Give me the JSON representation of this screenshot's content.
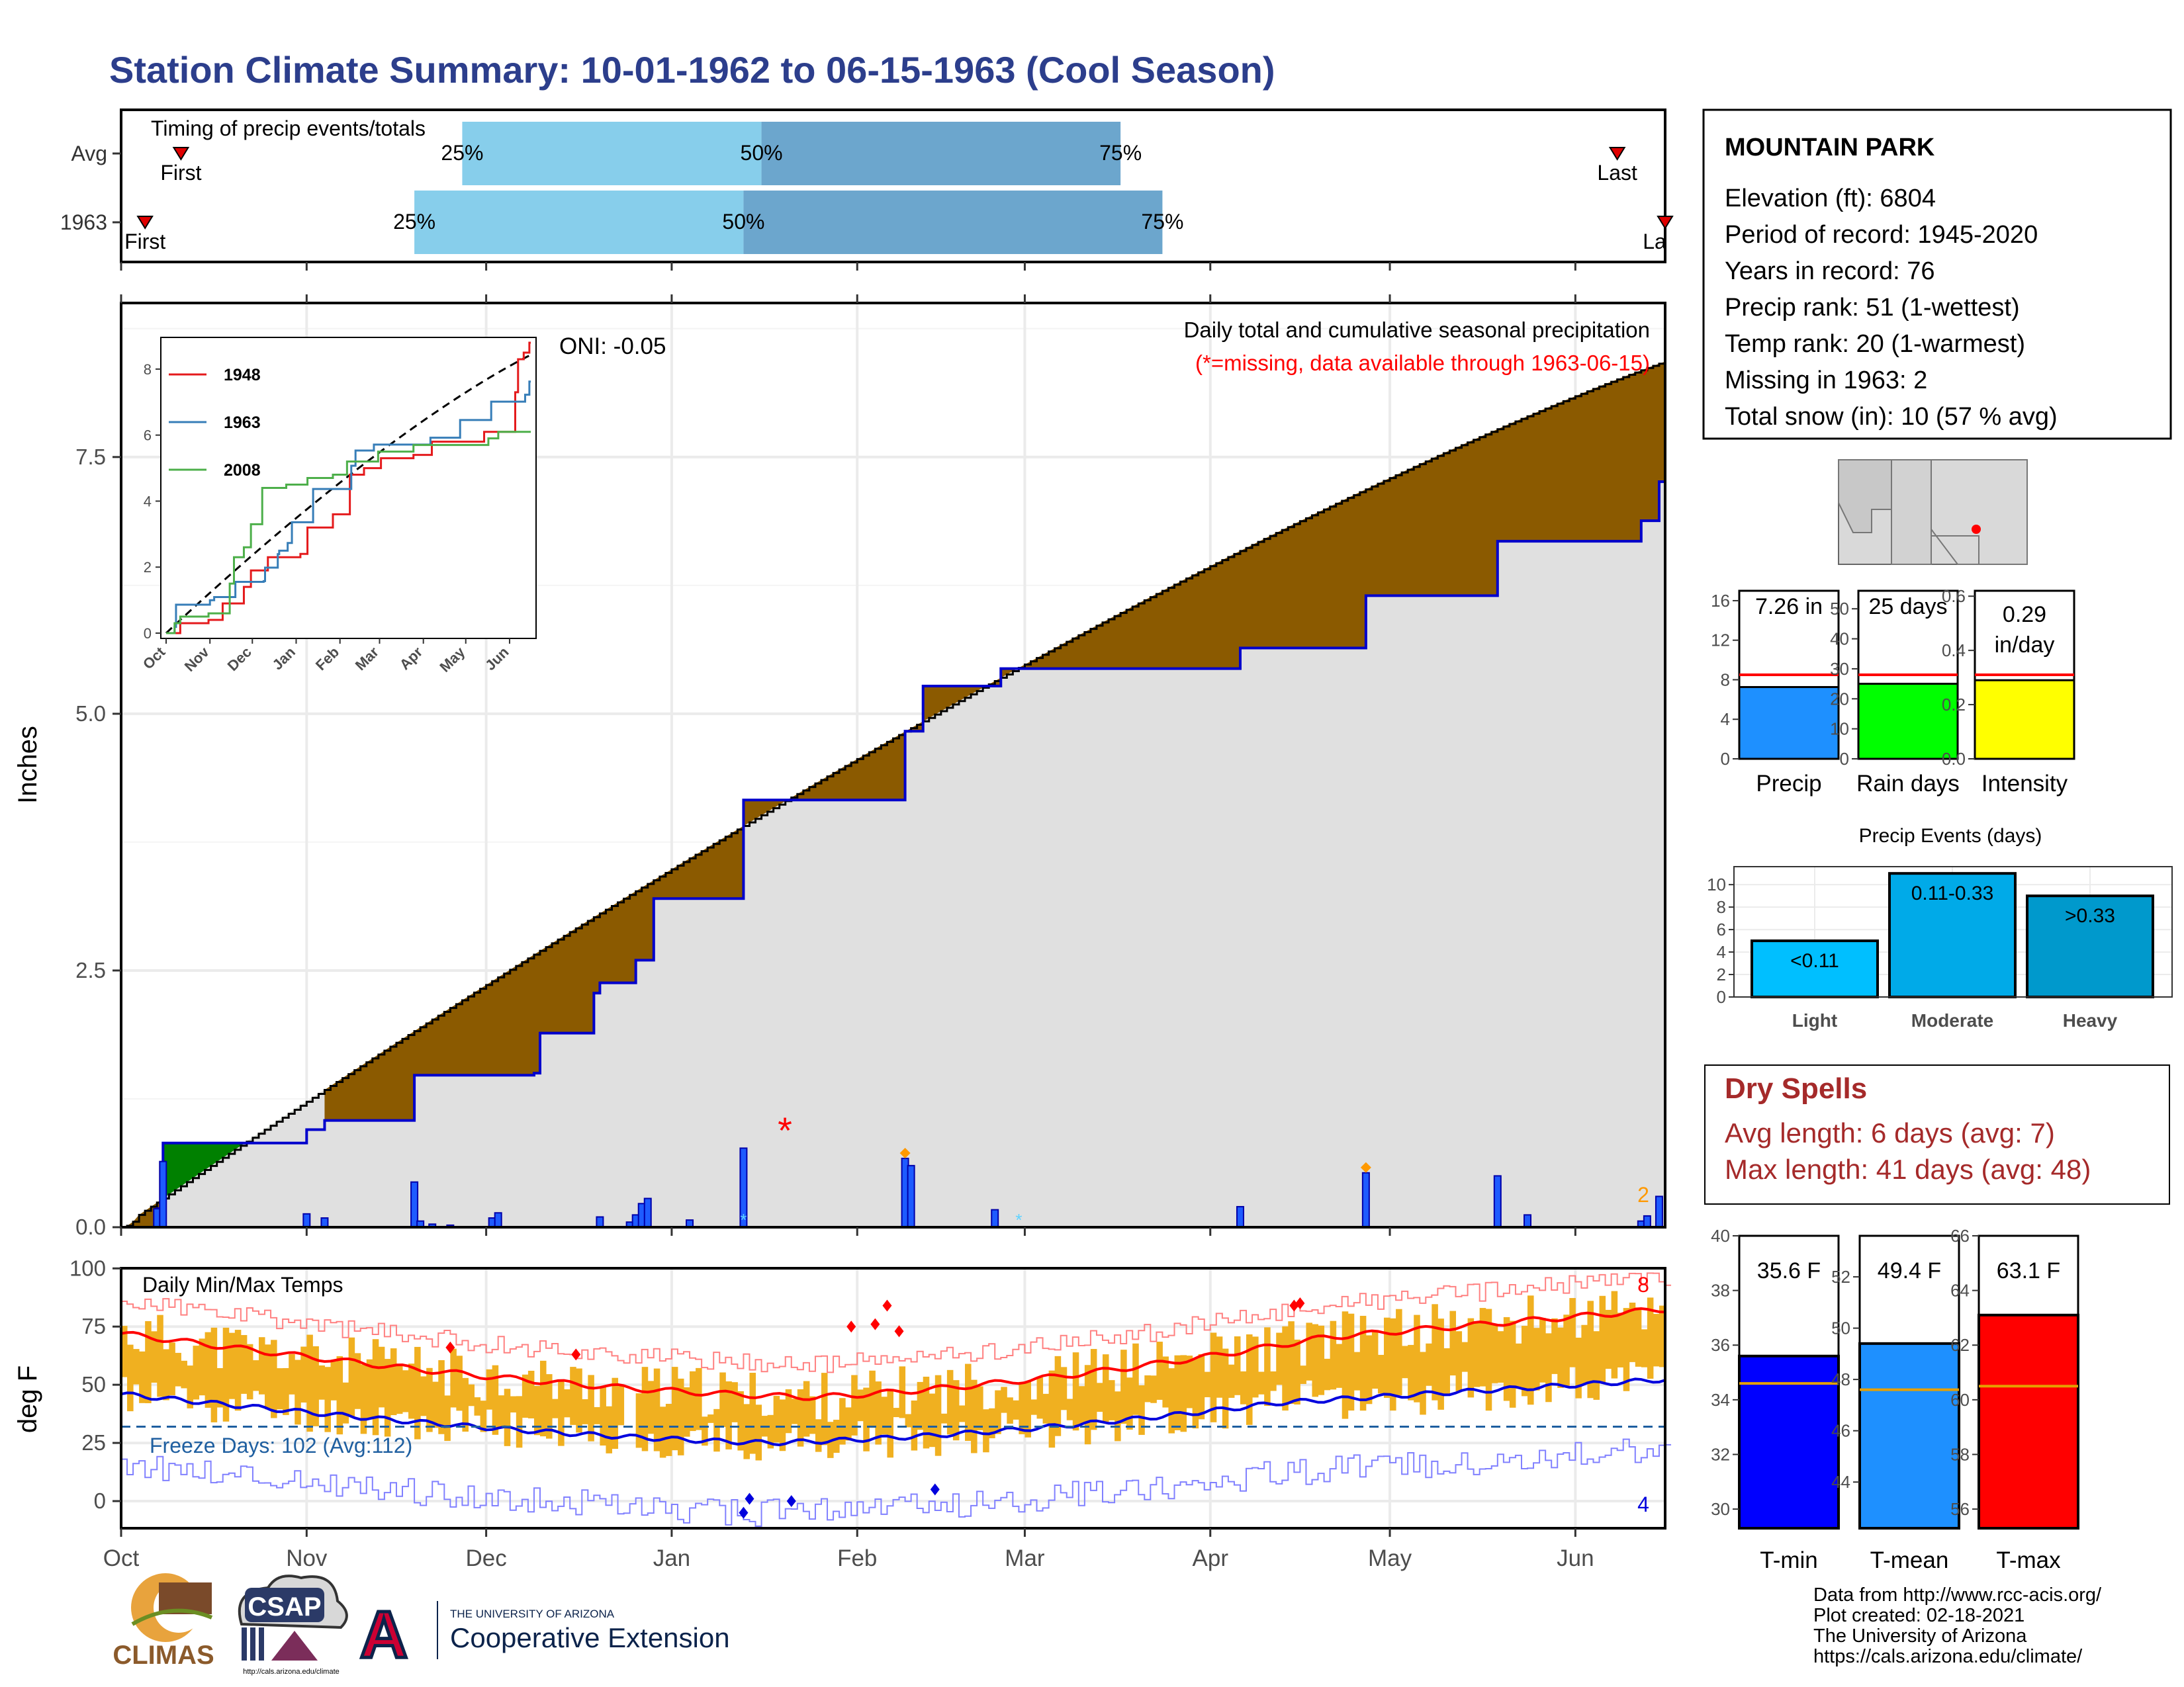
{
  "title": "Station Climate Summary: 10-01-1962 to 06-15-1963 (Cool Season)",
  "timing": {
    "label": "Timing of precip events/totals",
    "rows": [
      {
        "label": "Avg",
        "first_label": "First",
        "last_label": "Last",
        "first_day": 10,
        "last_day": 250,
        "p25_day": 57,
        "p50_day": 107,
        "p75_day": 167
      },
      {
        "label": "1963",
        "first_day": 4,
        "last_day": 258,
        "p25_day": 49,
        "p50_day": 104,
        "p75_day": 174,
        "first_label": "First",
        "last_label": "La"
      }
    ],
    "pct_labels": [
      "25%",
      "50%",
      "75%"
    ],
    "colors": {
      "light": "#87ceeb",
      "dark": "#6ca6cd",
      "marker": "#e00000"
    }
  },
  "precip": {
    "ylabel": "Inches",
    "yticks": [
      0.0,
      2.5,
      5.0,
      7.5
    ],
    "ytick_labels": [
      "0.0",
      "2.5",
      "5.0",
      "7.5"
    ],
    "ylim": [
      0,
      9.0
    ],
    "caption_line1": "Daily total and cumulative seasonal precipitation",
    "caption_line2": "(*=missing, data available through 1963-06-15)",
    "oni_label": "ONI: -0.05",
    "missing_count_label": "2",
    "missing_marker": "*",
    "colors": {
      "avg_fill": "#8b5a00",
      "year_line": "#0000cc",
      "surplus_fill": "#008000",
      "bars": "#1e5bff",
      "bg": "#e0e0e0",
      "missing": "#ff0000",
      "snow": "#ff9900",
      "trace": "#5fd3ff"
    }
  },
  "inset": {
    "yticks": [
      "0",
      "2",
      "4",
      "6",
      "8"
    ],
    "months": [
      "Oct",
      "Nov",
      "Dec",
      "Jan",
      "Feb",
      "Mar",
      "Apr",
      "May",
      "Jun"
    ],
    "legend": [
      {
        "label": "1948",
        "color": "#e41a1c"
      },
      {
        "label": "1963",
        "color": "#377eb8"
      },
      {
        "label": "2008",
        "color": "#4daf4a"
      }
    ]
  },
  "temps": {
    "title": "Daily Min/Max Temps",
    "ylabel": "deg F",
    "yticks": [
      "0",
      "25",
      "50",
      "75",
      "100"
    ],
    "freeze_label": "Freeze Days: 102 (Avg:112)",
    "max_count_label": "8",
    "min_count_label": "4",
    "freeze_line_f": 32,
    "colors": {
      "bars": "#f0b020",
      "avg_max": "#ff0000",
      "avg_min": "#0000dd",
      "rec_max": "#ff8080",
      "rec_min": "#8080ff",
      "freeze": "#1f5fa0"
    }
  },
  "months": [
    "Oct",
    "Nov",
    "Dec",
    "Jan",
    "Feb",
    "Mar",
    "Apr",
    "May",
    "Jun"
  ],
  "station": {
    "name": "MOUNTAIN PARK",
    "lines": [
      "Elevation (ft): 6804",
      "Period of record: 1945-2020",
      "Years in record: 76",
      "Precip rank: 51 (1-wettest)",
      "Temp rank: 20 (1-warmest)",
      "Missing in 1963: 2",
      "Total snow (in): 10 (57 % avg)"
    ]
  },
  "summary_bars": [
    {
      "label": "Precip",
      "value_label": "7.26 in",
      "value": 7.26,
      "avg": 8.5,
      "ymax": 17,
      "ticks": [
        "0",
        "4",
        "8",
        "12",
        "16"
      ],
      "color": "#1e90ff"
    },
    {
      "label": "Rain days",
      "value_label": "25 days",
      "value": 25,
      "avg": 28,
      "ymax": 56,
      "ticks": [
        "0",
        "10",
        "20",
        "30",
        "40",
        "50"
      ],
      "color": "#00ff00"
    },
    {
      "label": "Intensity",
      "value_label": "0.29 in/day",
      "value": 0.29,
      "avg": 0.31,
      "ymax": 0.62,
      "ticks": [
        "0.0",
        "0.2",
        "0.4",
        "0.6"
      ],
      "color": "#ffff00"
    }
  ],
  "events": {
    "title": "Precip Events (days)",
    "ticks": [
      "0",
      "2",
      "4",
      "6",
      "8",
      "10"
    ],
    "bars": [
      {
        "label": "Light",
        "value_label": "<0.11",
        "value": 5,
        "color": "#00bfff"
      },
      {
        "label": "Moderate",
        "value_label": "0.11-0.33",
        "value": 11,
        "color": "#00aae8"
      },
      {
        "label": "Heavy",
        "value_label": ">0.33",
        "value": 9,
        "color": "#0099cc"
      }
    ]
  },
  "dry_spells": {
    "title": "Dry Spells",
    "avg_line": "Avg length: 6 days (avg: 7)",
    "max_line": "Max length: 41 days (avg: 48)",
    "color": "#a52a2a"
  },
  "temp_bars": [
    {
      "label": "T-min",
      "value_label": "35.6 F",
      "value": 35.6,
      "avg": 34.6,
      "ymin": 29.3,
      "ymax": 40,
      "ticks": [
        "30",
        "32",
        "34",
        "36",
        "38",
        "40"
      ],
      "tick_vals": [
        30,
        32,
        34,
        36,
        38,
        40
      ],
      "color": "#0000ff"
    },
    {
      "label": "T-mean",
      "value_label": "49.4 F",
      "value": 49.4,
      "avg": 47.6,
      "ymin": 42.2,
      "ymax": 53.6,
      "ticks": [
        "44",
        "46",
        "48",
        "50",
        "52"
      ],
      "tick_vals": [
        44,
        46,
        48,
        50,
        52
      ],
      "color": "#1e90ff"
    },
    {
      "label": "T-max",
      "value_label": "63.1 F",
      "value": 63.1,
      "avg": 60.5,
      "ymin": 55.3,
      "ymax": 66,
      "ticks": [
        "56",
        "58",
        "60",
        "62",
        "64",
        "66"
      ],
      "tick_vals": [
        56,
        58,
        60,
        62,
        64,
        66
      ],
      "color": "#ff0000"
    }
  ],
  "footer": {
    "lines": [
      "Data from http://www.rcc-acis.org/",
      "Plot created: 02-18-2021",
      "The University of Arizona",
      "https://cals.arizona.edu/climate/"
    ],
    "climas": "CLIMAS",
    "csap": "CSAP",
    "csap_url": "http://cals.arizona.edu/climate",
    "ua_small": "THE UNIVERSITY OF ARIZONA",
    "ua_big": "Cooperative Extension",
    "ua_letter": "A"
  }
}
